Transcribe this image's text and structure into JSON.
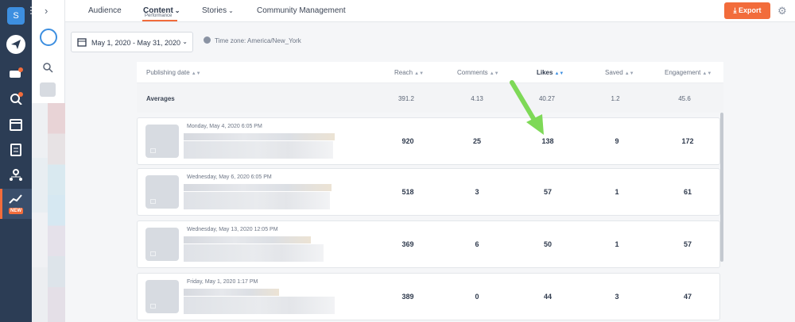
{
  "sidebar": {
    "brand_letter": "S",
    "new_badge": "NEW",
    "icons": [
      "send-icon",
      "inbox-icon",
      "listening-icon",
      "calendar-icon",
      "planner-icon",
      "network-icon",
      "analytics-icon"
    ]
  },
  "nav": {
    "tabs": [
      {
        "label": "Audience"
      },
      {
        "label": "Content",
        "sub": "Performance",
        "active": true
      },
      {
        "label": "Stories"
      },
      {
        "label": "Community Management"
      }
    ],
    "export_label": "Export"
  },
  "filters": {
    "date_range": "May 1, 2020 - May 31, 2020",
    "timezone": "Time zone: America/New_York"
  },
  "table": {
    "columns": [
      "Publishing date",
      "Reach",
      "Comments",
      "Likes",
      "Saved",
      "Engagement"
    ],
    "sorted_column": "Likes",
    "averages_label": "Averages",
    "averages": [
      "391.2",
      "4.13",
      "40.27",
      "1.2",
      "45.6"
    ],
    "rows": [
      {
        "date": "Monday, May 4, 2020 6:05 PM",
        "values": [
          "920",
          "25",
          "138",
          "9",
          "172"
        ]
      },
      {
        "date": "Wednesday, May 6, 2020 6:05 PM",
        "values": [
          "518",
          "3",
          "57",
          "1",
          "61"
        ]
      },
      {
        "date": "Wednesday, May 13, 2020 12:05 PM",
        "values": [
          "369",
          "6",
          "50",
          "1",
          "57"
        ]
      },
      {
        "date": "Friday, May 1, 2020 1:17 PM",
        "values": [
          "389",
          "0",
          "44",
          "3",
          "47"
        ]
      }
    ]
  },
  "colors": {
    "accent": "#f26c3b",
    "rail": "#2c3d55",
    "arrow": "#7ed957",
    "link": "#3d8fe0"
  }
}
